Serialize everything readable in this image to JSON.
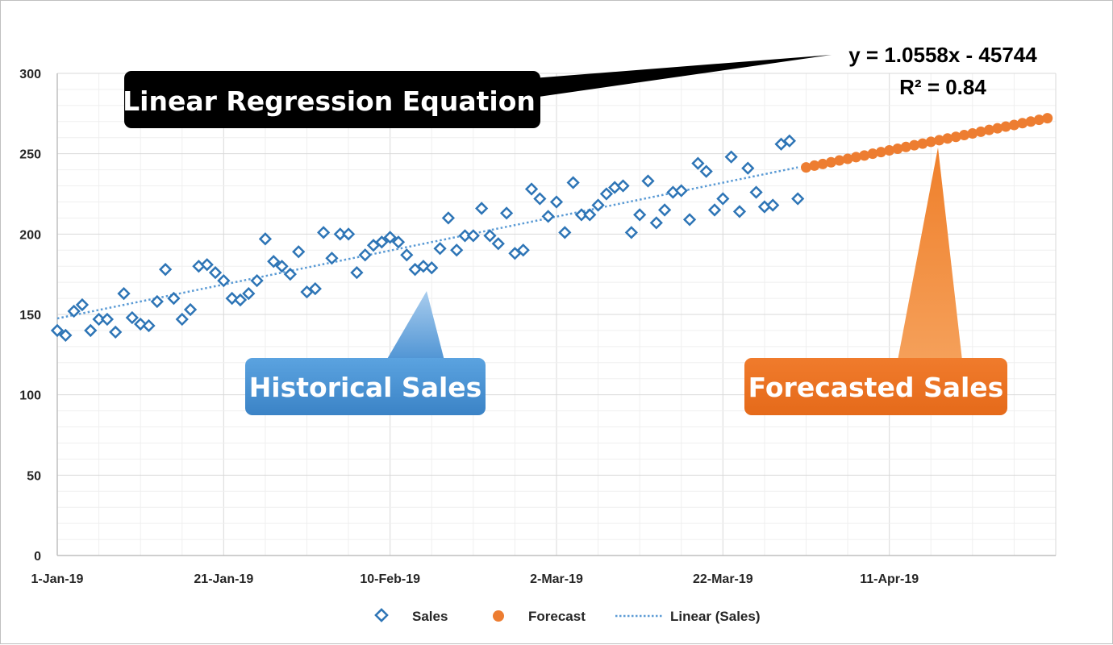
{
  "chart_data": {
    "type": "scatter",
    "x_axis": {
      "start": "2019-01-01",
      "end": "2019-05-01",
      "tick_labels": [
        "1-Jan-19",
        "21-Jan-19",
        "10-Feb-19",
        "2-Mar-19",
        "22-Mar-19",
        "11-Apr-19"
      ]
    },
    "y_axis": {
      "min": 0,
      "max": 300,
      "step": 50,
      "tick_labels": [
        "0",
        "50",
        "100",
        "150",
        "200",
        "250",
        "300"
      ]
    },
    "grid": true,
    "legend_position": "bottom",
    "series": [
      {
        "name": "Sales",
        "marker": "diamond",
        "color": "#5b9bd5",
        "x": [
          "2019-01-01",
          "2019-01-02",
          "2019-01-03",
          "2019-01-04",
          "2019-01-05",
          "2019-01-06",
          "2019-01-07",
          "2019-01-08",
          "2019-01-09",
          "2019-01-10",
          "2019-01-11",
          "2019-01-12",
          "2019-01-13",
          "2019-01-14",
          "2019-01-15",
          "2019-01-16",
          "2019-01-17",
          "2019-01-18",
          "2019-01-19",
          "2019-01-20",
          "2019-01-21",
          "2019-01-22",
          "2019-01-23",
          "2019-01-24",
          "2019-01-25",
          "2019-01-26",
          "2019-01-27",
          "2019-01-28",
          "2019-01-29",
          "2019-01-30",
          "2019-01-31",
          "2019-02-01",
          "2019-02-02",
          "2019-02-03",
          "2019-02-04",
          "2019-02-05",
          "2019-02-06",
          "2019-02-07",
          "2019-02-08",
          "2019-02-09",
          "2019-02-10",
          "2019-02-11",
          "2019-02-12",
          "2019-02-13",
          "2019-02-14",
          "2019-02-15",
          "2019-02-16",
          "2019-02-17",
          "2019-02-18",
          "2019-02-19",
          "2019-02-20",
          "2019-02-21",
          "2019-02-22",
          "2019-02-23",
          "2019-02-24",
          "2019-02-25",
          "2019-02-26",
          "2019-02-27",
          "2019-02-28",
          "2019-03-01",
          "2019-03-02",
          "2019-03-03",
          "2019-03-04",
          "2019-03-05",
          "2019-03-06",
          "2019-03-07",
          "2019-03-08",
          "2019-03-09",
          "2019-03-10",
          "2019-03-11",
          "2019-03-12",
          "2019-03-13",
          "2019-03-14",
          "2019-03-15",
          "2019-03-16",
          "2019-03-17",
          "2019-03-18",
          "2019-03-19",
          "2019-03-20",
          "2019-03-21",
          "2019-03-22",
          "2019-03-23",
          "2019-03-24",
          "2019-03-25",
          "2019-03-26",
          "2019-03-27",
          "2019-03-28",
          "2019-03-29",
          "2019-03-30",
          "2019-03-31"
        ],
        "values": [
          140,
          137,
          152,
          156,
          140,
          147,
          147,
          139,
          163,
          148,
          144,
          143,
          158,
          178,
          160,
          147,
          153,
          180,
          181,
          176,
          171,
          160,
          159,
          163,
          171,
          197,
          183,
          180,
          175,
          189,
          164,
          166,
          201,
          185,
          200,
          200,
          176,
          187,
          193,
          195,
          198,
          195,
          187,
          178,
          180,
          179,
          191,
          210,
          190,
          199,
          199,
          216,
          199,
          194,
          213,
          188,
          190,
          228,
          222,
          211,
          220,
          201,
          232,
          212,
          212,
          218,
          225,
          229,
          230,
          201,
          212,
          233,
          207,
          215,
          226,
          227,
          209,
          244,
          239,
          215,
          222,
          248,
          214,
          241,
          226,
          217,
          218,
          256,
          258,
          222
        ]
      },
      {
        "name": "Forecast",
        "marker": "circle",
        "color": "#ed7d31",
        "x": [
          "2019-04-01",
          "2019-04-02",
          "2019-04-03",
          "2019-04-04",
          "2019-04-05",
          "2019-04-06",
          "2019-04-07",
          "2019-04-08",
          "2019-04-09",
          "2019-04-10",
          "2019-04-11",
          "2019-04-12",
          "2019-04-13",
          "2019-04-14",
          "2019-04-15",
          "2019-04-16",
          "2019-04-17",
          "2019-04-18",
          "2019-04-19",
          "2019-04-20",
          "2019-04-21",
          "2019-04-22",
          "2019-04-23",
          "2019-04-24",
          "2019-04-25",
          "2019-04-26",
          "2019-04-27",
          "2019-04-28",
          "2019-04-29",
          "2019-04-30"
        ],
        "values": [
          241.5,
          242.6,
          243.6,
          244.7,
          245.8,
          246.8,
          247.9,
          248.9,
          250.0,
          251.0,
          252.1,
          253.1,
          254.2,
          255.3,
          256.3,
          257.4,
          258.4,
          259.5,
          260.5,
          261.6,
          262.6,
          263.7,
          264.8,
          265.8,
          266.9,
          267.9,
          269.0,
          270.0,
          271.1,
          272.1
        ]
      },
      {
        "name": "Linear (Sales)",
        "style": "dotted",
        "color": "#5b9bd5",
        "x": [
          "2019-01-01",
          "2019-03-31"
        ],
        "values": [
          147.5,
          241.5
        ]
      }
    ],
    "trendline": {
      "equation": "y = 1.0558x - 45744",
      "r_squared": "R² = 0.84"
    },
    "annotations": {
      "equation_label": "Linear Regression Equation",
      "historical_label": "Historical Sales",
      "forecast_label": "Forecasted Sales"
    }
  },
  "legend": {
    "items": [
      "Sales",
      "Forecast",
      "Linear (Sales)"
    ]
  }
}
